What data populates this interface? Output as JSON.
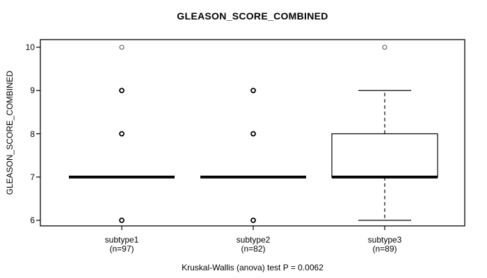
{
  "chart_data": {
    "type": "boxplot",
    "title": "GLEASON_SCORE_COMBINED",
    "ylabel": "GLEASON_SCORE_COMBINED",
    "xlabel": "",
    "footnote": "Kruskal-Wallis (anova) test P = 0.0062",
    "ylim": [
      6,
      10
    ],
    "yticks": [
      10,
      9,
      8,
      7,
      6
    ],
    "grid": false,
    "legend": "none",
    "colors": {
      "line": "#000000",
      "box_fill": "#ffffff",
      "background": "#ffffff",
      "light_outlier": "#555555"
    },
    "groups": [
      {
        "label": "subtype1",
        "sublabel": "(n=97)",
        "n": 97,
        "median": 7,
        "q1": 7,
        "q3": 7,
        "whisker_low": 7,
        "whisker_high": 7,
        "outliers": [
          {
            "value": 10,
            "bold": false
          },
          {
            "value": 9,
            "bold": true
          },
          {
            "value": 8,
            "bold": true
          },
          {
            "value": 6,
            "bold": true
          }
        ]
      },
      {
        "label": "subtype2",
        "sublabel": "(n=82)",
        "n": 82,
        "median": 7,
        "q1": 7,
        "q3": 7,
        "whisker_low": 7,
        "whisker_high": 7,
        "outliers": [
          {
            "value": 9,
            "bold": true
          },
          {
            "value": 8,
            "bold": true
          },
          {
            "value": 6,
            "bold": true
          }
        ]
      },
      {
        "label": "subtype3",
        "sublabel": "(n=89)",
        "n": 89,
        "median": 7,
        "q1": 7,
        "q3": 8,
        "whisker_low": 6,
        "whisker_high": 9,
        "outliers": [
          {
            "value": 10,
            "bold": false
          }
        ]
      }
    ]
  }
}
